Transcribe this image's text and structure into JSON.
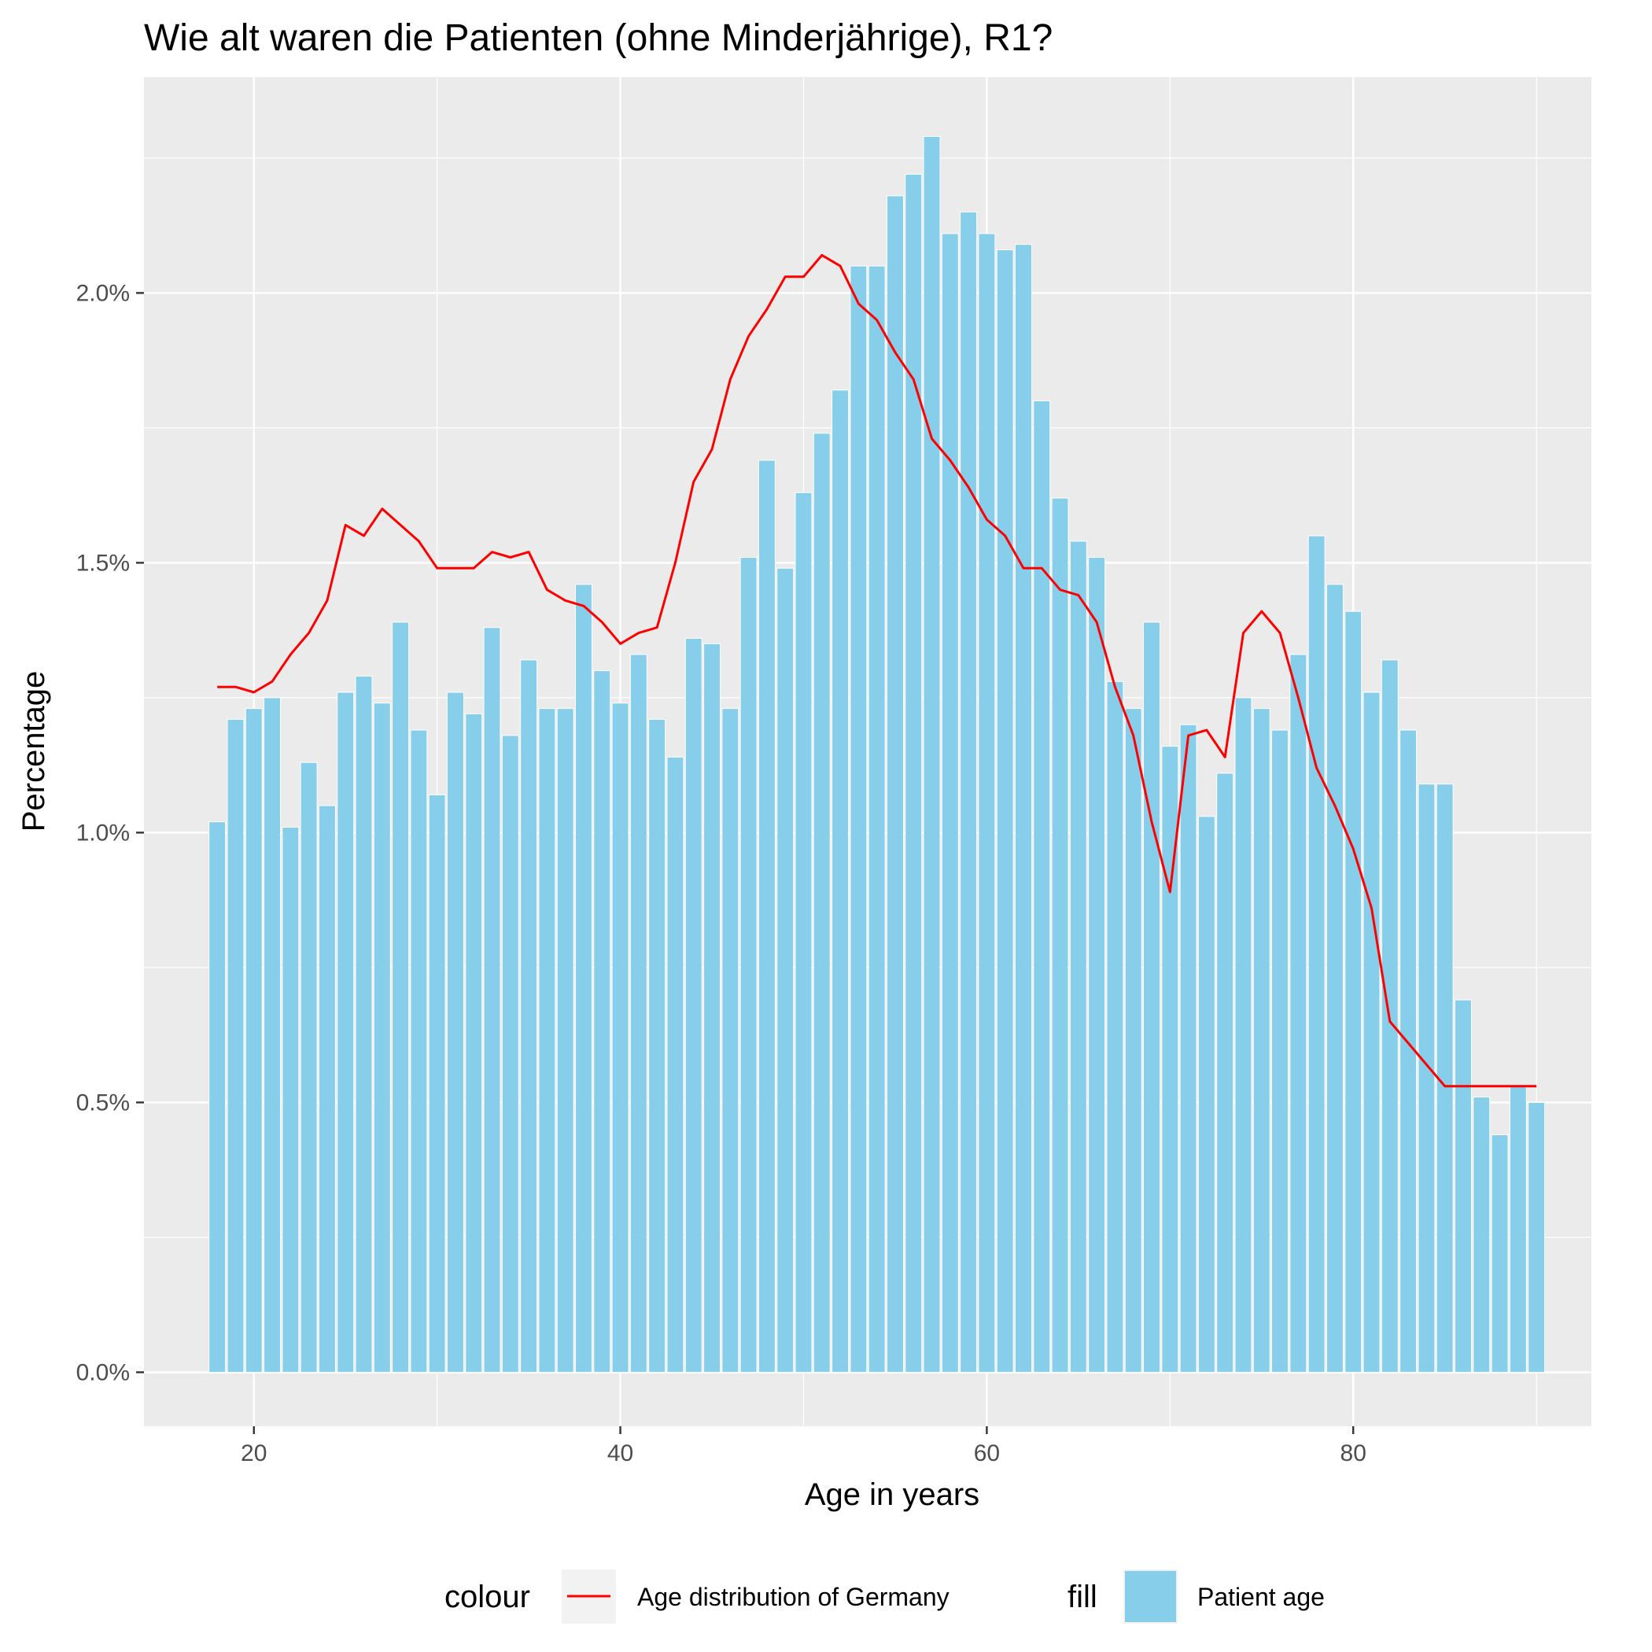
{
  "chart_data": {
    "type": "bar",
    "title": "Wie alt waren die Patienten (ohne Minderjährige), R1?",
    "xlabel": "Age in years",
    "ylabel": "Percentage",
    "xlim": [
      14,
      93
    ],
    "ylim": [
      -0.1,
      2.4
    ],
    "x_ticks": [
      20,
      40,
      60,
      80
    ],
    "x_tick_labels": [
      "20",
      "40",
      "60",
      "80"
    ],
    "y_ticks": [
      0,
      0.5,
      1.0,
      1.5,
      2.0
    ],
    "y_tick_labels": [
      "0.0%",
      "0.5%",
      "1.0%",
      "1.5%",
      "2.0%"
    ],
    "grid": true,
    "legend_position": "bottom",
    "colors": {
      "panel_background": "#ebebeb",
      "grid": "#ffffff",
      "bar_fill": "#87ceeb",
      "line": "#ff0000"
    },
    "series": [
      {
        "kind": "bar",
        "name": "Patient age",
        "x": [
          18,
          19,
          20,
          21,
          22,
          23,
          24,
          25,
          26,
          27,
          28,
          29,
          30,
          31,
          32,
          33,
          34,
          35,
          36,
          37,
          38,
          39,
          40,
          41,
          42,
          43,
          44,
          45,
          46,
          47,
          48,
          49,
          50,
          51,
          52,
          53,
          54,
          55,
          56,
          57,
          58,
          59,
          60,
          61,
          62,
          63,
          64,
          65,
          66,
          67,
          68,
          69,
          70,
          71,
          72,
          73,
          74,
          75,
          76,
          77,
          78,
          79,
          80,
          81,
          82,
          83,
          84,
          85,
          86,
          87,
          88,
          89,
          90
        ],
        "values": [
          1.02,
          1.21,
          1.23,
          1.25,
          1.01,
          1.13,
          1.05,
          1.26,
          1.29,
          1.24,
          1.39,
          1.19,
          1.07,
          1.26,
          1.22,
          1.38,
          1.18,
          1.32,
          1.23,
          1.23,
          1.46,
          1.3,
          1.24,
          1.33,
          1.21,
          1.14,
          1.36,
          1.35,
          1.23,
          1.51,
          1.69,
          1.49,
          1.63,
          1.74,
          1.82,
          2.05,
          2.05,
          2.18,
          2.22,
          2.29,
          2.11,
          2.15,
          2.11,
          2.08,
          2.09,
          1.8,
          1.62,
          1.54,
          1.51,
          1.28,
          1.23,
          1.39,
          1.16,
          1.2,
          1.03,
          1.11,
          1.25,
          1.23,
          1.19,
          1.33,
          1.55,
          1.46,
          1.41,
          1.26,
          1.32,
          1.19,
          1.09,
          1.09,
          0.69,
          0.51,
          0.44,
          0.53,
          0.5
        ]
      },
      {
        "kind": "line",
        "name": "Age distribution of Germany",
        "x": [
          18,
          19,
          20,
          21,
          22,
          23,
          24,
          25,
          26,
          27,
          28,
          29,
          30,
          31,
          32,
          33,
          34,
          35,
          36,
          37,
          38,
          39,
          40,
          41,
          42,
          43,
          44,
          45,
          46,
          47,
          48,
          49,
          50,
          51,
          52,
          53,
          54,
          55,
          56,
          57,
          58,
          59,
          60,
          61,
          62,
          63,
          64,
          65,
          66,
          67,
          68,
          69,
          70,
          71,
          72,
          73,
          74,
          75,
          76,
          77,
          78,
          79,
          80,
          81,
          82,
          83,
          84,
          85,
          86,
          87,
          88,
          89,
          90
        ],
        "values": [
          1.27,
          1.27,
          1.26,
          1.28,
          1.33,
          1.37,
          1.43,
          1.57,
          1.55,
          1.6,
          1.57,
          1.54,
          1.49,
          1.49,
          1.49,
          1.52,
          1.51,
          1.52,
          1.45,
          1.43,
          1.42,
          1.39,
          1.35,
          1.37,
          1.38,
          1.5,
          1.65,
          1.71,
          1.84,
          1.92,
          1.97,
          2.03,
          2.03,
          2.07,
          2.05,
          1.98,
          1.95,
          1.89,
          1.84,
          1.73,
          1.69,
          1.64,
          1.58,
          1.55,
          1.49,
          1.49,
          1.45,
          1.44,
          1.39,
          1.27,
          1.18,
          1.02,
          0.89,
          1.18,
          1.19,
          1.14,
          1.37,
          1.41,
          1.37,
          1.25,
          1.12,
          1.05,
          0.97,
          0.86,
          0.65,
          0.61,
          0.57,
          0.53,
          0.53,
          0.53,
          0.53,
          0.53,
          0.53
        ]
      }
    ],
    "legend": {
      "colour_title": "colour",
      "colour_label": "Age distribution of Germany",
      "fill_title": "fill",
      "fill_label": "Patient age"
    }
  }
}
